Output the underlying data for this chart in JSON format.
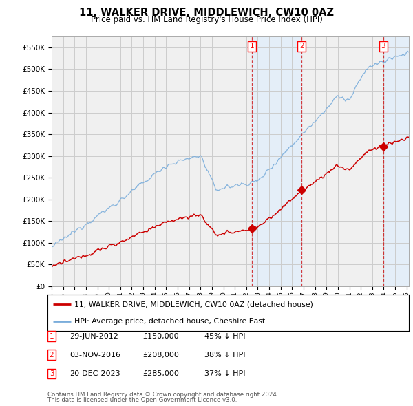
{
  "title": "11, WALKER DRIVE, MIDDLEWICH, CW10 0AZ",
  "subtitle": "Price paid vs. HM Land Registry's House Price Index (HPI)",
  "legend_house": "11, WALKER DRIVE, MIDDLEWICH, CW10 0AZ (detached house)",
  "legend_hpi": "HPI: Average price, detached house, Cheshire East",
  "footer1": "Contains HM Land Registry data © Crown copyright and database right 2024.",
  "footer2": "This data is licensed under the Open Government Licence v3.0.",
  "transactions": [
    {
      "num": 1,
      "date": "29-JUN-2012",
      "price": 150000,
      "pct": "45% ↓ HPI",
      "x_year": 2012.5
    },
    {
      "num": 2,
      "date": "03-NOV-2016",
      "price": 208000,
      "pct": "38% ↓ HPI",
      "x_year": 2016.84
    },
    {
      "num": 3,
      "date": "20-DEC-2023",
      "price": 285000,
      "pct": "37% ↓ HPI",
      "x_year": 2023.96
    }
  ],
  "ylim": [
    0,
    575000
  ],
  "yticks": [
    0,
    50000,
    100000,
    150000,
    200000,
    250000,
    300000,
    350000,
    400000,
    450000,
    500000,
    550000
  ],
  "xlim_start": 1995.4,
  "xlim_end": 2026.2,
  "house_color": "#cc0000",
  "hpi_color": "#7aaddb",
  "grid_color": "#cccccc",
  "bg_color": "#f0f0f0",
  "shade_color": "#ddeeff"
}
